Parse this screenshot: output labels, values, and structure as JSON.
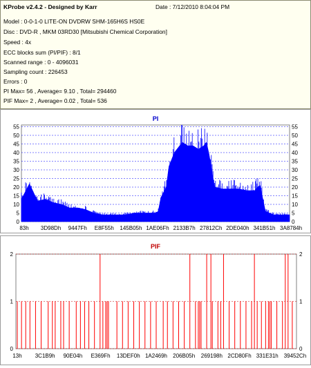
{
  "header": {
    "title": "KProbe v2.4.2 - Designed by Karr",
    "date": "Date : 7/12/2010 8:04:04 PM",
    "lines": [
      "Model : 0-0-1-0 LITE-ON DVDRW SHM-165H6S HS0E",
      "Disc : DVD-R , MKM 03RD30  [Mitsubishi Chemical Corporation]",
      "Speed : 4x",
      "ECC blocks sum (PI/PIF) : 8/1",
      "Scanned range : 0 - 4096031",
      "Sampling count : 226453",
      "Errors : 0",
      "PI Max= 56 , Average= 9.10 , Total= 294460",
      "PIF Max= 2 , Average= 0.02 , Total= 536"
    ]
  },
  "colors": {
    "pi_fill": "#0000ff",
    "pif_bar": "#ff0000",
    "grid_pi": "#0000ff",
    "grid_pif": "#c00000",
    "title_pi": "#0000cc",
    "title_pif": "#c00000"
  },
  "chart_data": [
    {
      "type": "area",
      "title": "PI",
      "ylim": [
        0,
        56
      ],
      "yticks": [
        0,
        5,
        10,
        15,
        20,
        25,
        30,
        35,
        40,
        45,
        50,
        55
      ],
      "xticks": [
        "83h",
        "3D98Dh",
        "9447Fh",
        "E8F55h",
        "145B05h",
        "1AE06Fh",
        "2133B7h",
        "27812Ch",
        "2DE040h",
        "341B51h",
        "3A8784h"
      ],
      "grid": true,
      "x_fraction": [
        0,
        0.03,
        0.06,
        0.09,
        0.12,
        0.15,
        0.18,
        0.21,
        0.24,
        0.27,
        0.3,
        0.33,
        0.36,
        0.39,
        0.42,
        0.45,
        0.48,
        0.5,
        0.51,
        0.52,
        0.54,
        0.55,
        0.57,
        0.6,
        0.62,
        0.64,
        0.66,
        0.68,
        0.69,
        0.7,
        0.72,
        0.75,
        0.78,
        0.81,
        0.84,
        0.87,
        0.88,
        0.89,
        0.91,
        0.94,
        0.97,
        1.0
      ],
      "values": [
        13,
        22,
        12,
        13,
        11,
        10,
        8,
        8,
        7,
        5,
        4,
        4,
        4,
        4,
        5,
        5,
        5,
        5,
        6,
        14,
        20,
        32,
        40,
        46,
        44,
        44,
        42,
        44,
        46,
        39,
        20,
        19,
        19,
        19,
        18,
        18,
        20,
        21,
        6,
        4,
        4,
        4
      ]
    },
    {
      "type": "bar",
      "title": "PIF",
      "ylim": [
        0,
        2
      ],
      "yticks": [
        0,
        1,
        2
      ],
      "xticks": [
        "13h",
        "3C1B9h",
        "90E04h",
        "E369Fh",
        "13DEF0h",
        "1A2469h",
        "206B05h",
        "269198h",
        "2CD80Fh",
        "331E31h",
        "39452Ch"
      ],
      "grid": true,
      "x_fraction": [
        0.005,
        0.02,
        0.035,
        0.05,
        0.07,
        0.09,
        0.115,
        0.13,
        0.14,
        0.16,
        0.17,
        0.19,
        0.215,
        0.23,
        0.245,
        0.26,
        0.28,
        0.3,
        0.31,
        0.32,
        0.325,
        0.33,
        0.36,
        0.38,
        0.4,
        0.42,
        0.44,
        0.46,
        0.48,
        0.5,
        0.525,
        0.54,
        0.56,
        0.58,
        0.6,
        0.62,
        0.64,
        0.65,
        0.655,
        0.66,
        0.68,
        0.695,
        0.7,
        0.72,
        0.73,
        0.74,
        0.76,
        0.78,
        0.8,
        0.82,
        0.84,
        0.85,
        0.86,
        0.875,
        0.89,
        0.9,
        0.905,
        0.91,
        0.93,
        0.95,
        0.96,
        0.97,
        0.985
      ],
      "values": [
        1,
        1,
        1,
        1,
        1,
        1,
        1,
        1,
        1,
        1,
        1,
        1,
        1,
        1,
        1,
        1,
        1,
        2,
        1,
        1,
        1,
        1,
        1,
        1,
        1,
        1,
        1,
        1,
        1,
        1,
        1,
        1,
        1,
        1,
        1,
        2,
        1,
        1,
        1,
        1,
        2,
        2,
        1,
        1,
        1,
        2,
        1,
        1,
        1,
        1,
        1,
        2,
        1,
        1,
        1,
        1,
        1,
        1,
        1,
        1,
        2,
        2,
        1
      ]
    }
  ]
}
